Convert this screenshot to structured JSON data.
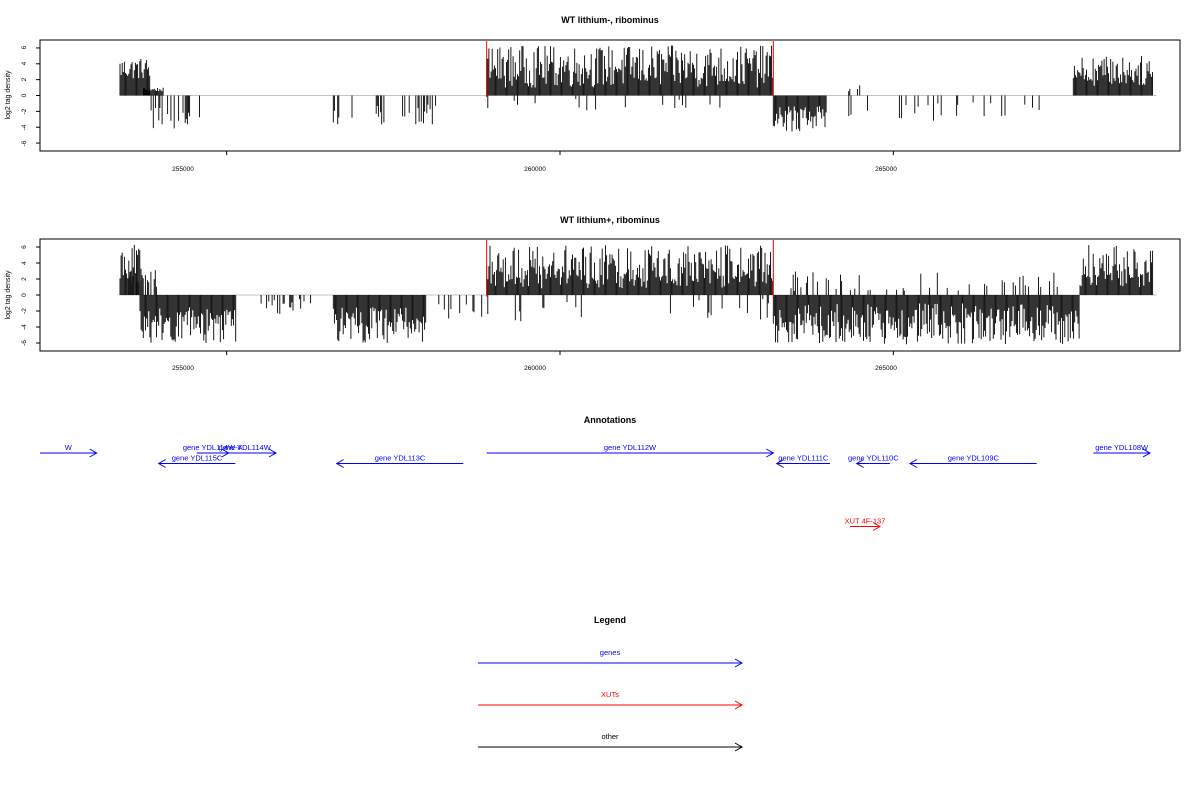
{
  "page": {
    "background": "#ffffff"
  },
  "panels": [
    {
      "title": "WT lithium-, ribominus",
      "ylabel": "log2 tag density",
      "yticks": [
        6,
        4,
        2,
        0,
        -2,
        -4,
        -6
      ],
      "xticks": [
        "255000",
        "260000",
        "265000"
      ]
    },
    {
      "title": "WT lithium+, ribominus",
      "ylabel": "log2 tag density",
      "yticks": [
        6,
        4,
        2,
        0,
        -2,
        -4,
        -6
      ],
      "xticks": [
        "255000",
        "260000",
        "265000"
      ]
    }
  ],
  "chart_data": [
    {
      "type": "bar",
      "title": "WT lithium-, ribominus",
      "xlabel": "",
      "ylabel": "log2 tag density",
      "xlim": [
        252200,
        269300
      ],
      "ylim": [
        -7,
        7
      ],
      "grid": false,
      "xticks": [
        255000,
        260000,
        265000
      ],
      "yticks": [
        -6,
        -4,
        -2,
        0,
        2,
        4,
        6
      ],
      "highlight_lines": [
        258900,
        263200
      ],
      "highlight_color": "#ff0000",
      "bar_color": "#000000",
      "segments": [
        {
          "start": 253400,
          "end": 253850,
          "min": 2.0,
          "max": 4.8,
          "sign": 1
        },
        {
          "start": 253750,
          "end": 254050,
          "min": 0.5,
          "max": 1.0,
          "sign": 1
        },
        {
          "start": 253800,
          "end": 254700,
          "min": 1.5,
          "max": 4.2,
          "sign": -1,
          "sparse": 0.3
        },
        {
          "start": 254500,
          "end": 254600,
          "min": 1.5,
          "max": 2.2,
          "sign": 1,
          "sparse": 0.15
        },
        {
          "start": 256600,
          "end": 258200,
          "min": 1.0,
          "max": 3.8,
          "sign": -1,
          "sparse": 0.25
        },
        {
          "start": 258900,
          "end": 263200,
          "min": 1.0,
          "max": 6.3,
          "sign": 1
        },
        {
          "start": 258900,
          "end": 263200,
          "min": 0.3,
          "max": 2.2,
          "sign": -1,
          "sparse": 0.05
        },
        {
          "start": 263200,
          "end": 264000,
          "min": 1.2,
          "max": 4.6,
          "sign": -1
        },
        {
          "start": 264200,
          "end": 267300,
          "min": 0.8,
          "max": 3.2,
          "sign": -1,
          "sparse": 0.12
        },
        {
          "start": 264000,
          "end": 264500,
          "min": 0.5,
          "max": 1.5,
          "sign": 1,
          "sparse": 0.1
        },
        {
          "start": 267700,
          "end": 268900,
          "min": 1.2,
          "max": 5.0,
          "sign": 1
        }
      ]
    },
    {
      "type": "bar",
      "title": "WT lithium+, ribominus",
      "xlabel": "",
      "ylabel": "log2 tag density",
      "xlim": [
        252200,
        269300
      ],
      "ylim": [
        -7,
        7
      ],
      "grid": false,
      "xticks": [
        255000,
        260000,
        265000
      ],
      "yticks": [
        -6,
        -4,
        -2,
        0,
        2,
        4,
        6
      ],
      "highlight_lines": [
        258900,
        263200
      ],
      "highlight_color": "#ff0000",
      "bar_color": "#000000",
      "segments": [
        {
          "start": 253400,
          "end": 253700,
          "min": 2.0,
          "max": 6.3,
          "sign": 1
        },
        {
          "start": 253500,
          "end": 254000,
          "min": 1.0,
          "max": 3.5,
          "sign": 1,
          "sparse": 0.4
        },
        {
          "start": 253700,
          "end": 255150,
          "min": 1.5,
          "max": 6.0,
          "sign": -1
        },
        {
          "start": 255500,
          "end": 256300,
          "min": 0.5,
          "max": 2.8,
          "sign": -1,
          "sparse": 0.25
        },
        {
          "start": 256600,
          "end": 258000,
          "min": 1.5,
          "max": 6.0,
          "sign": -1
        },
        {
          "start": 258000,
          "end": 258900,
          "min": 0.5,
          "max": 3.0,
          "sign": -1,
          "sparse": 0.2
        },
        {
          "start": 258900,
          "end": 263200,
          "min": 0.8,
          "max": 6.2,
          "sign": 1
        },
        {
          "start": 258900,
          "end": 263200,
          "min": 0.5,
          "max": 3.5,
          "sign": -1,
          "sparse": 0.1
        },
        {
          "start": 263200,
          "end": 267800,
          "min": 1.0,
          "max": 6.2,
          "sign": -1
        },
        {
          "start": 263300,
          "end": 267500,
          "min": 0.5,
          "max": 3.0,
          "sign": 1,
          "sparse": 0.18
        },
        {
          "start": 267800,
          "end": 268900,
          "min": 1.0,
          "max": 6.3,
          "sign": 1
        }
      ]
    }
  ],
  "annotations": {
    "title": "Annotations",
    "xlim": [
      252200,
      269300
    ],
    "genes_color": "#0000ff",
    "xuts_color": "#ff0000",
    "features": [
      {
        "label": "W",
        "start": 252200,
        "end": 253050,
        "strand": "+",
        "color": "#0000ff",
        "row": 0
      },
      {
        "label": "gene YDL114W-A",
        "start": 254550,
        "end": 255030,
        "strand": "+",
        "color": "#0000ff",
        "row": 0
      },
      {
        "label": "gene YDL115C",
        "start": 253980,
        "end": 255130,
        "strand": "-",
        "color": "#0000ff",
        "row": 1
      },
      {
        "label": "gene YDL114W",
        "start": 254800,
        "end": 255740,
        "strand": "+",
        "color": "#0000ff",
        "row": 0
      },
      {
        "label": "gene YDL113C",
        "start": 256650,
        "end": 258550,
        "strand": "-",
        "color": "#0000ff",
        "row": 1
      },
      {
        "label": "gene YDL112W",
        "start": 258900,
        "end": 263200,
        "strand": "+",
        "color": "#0000ff",
        "row": 0
      },
      {
        "label": "gene YDL111C",
        "start": 263250,
        "end": 264050,
        "strand": "-",
        "color": "#0000ff",
        "row": 1
      },
      {
        "label": "gene YDL110C",
        "start": 264450,
        "end": 264950,
        "strand": "-",
        "color": "#0000ff",
        "row": 1
      },
      {
        "label": "gene YDL109C",
        "start": 265250,
        "end": 267150,
        "strand": "-",
        "color": "#0000ff",
        "row": 1
      },
      {
        "label": "gene YDL108W",
        "start": 268000,
        "end": 269000,
        "strand": "+",
        "color": "#0000ff",
        "row": 0
      },
      {
        "label": "XUT 4F-137",
        "start": 264350,
        "end": 264800,
        "strand": "+",
        "color": "#ff0000",
        "row": 7
      }
    ]
  },
  "legend": {
    "title": "Legend",
    "items": [
      {
        "label": "genes",
        "color": "#0000ff"
      },
      {
        "label": "XUTs",
        "color": "#ff0000"
      },
      {
        "label": "other",
        "color": "#000000"
      }
    ]
  }
}
